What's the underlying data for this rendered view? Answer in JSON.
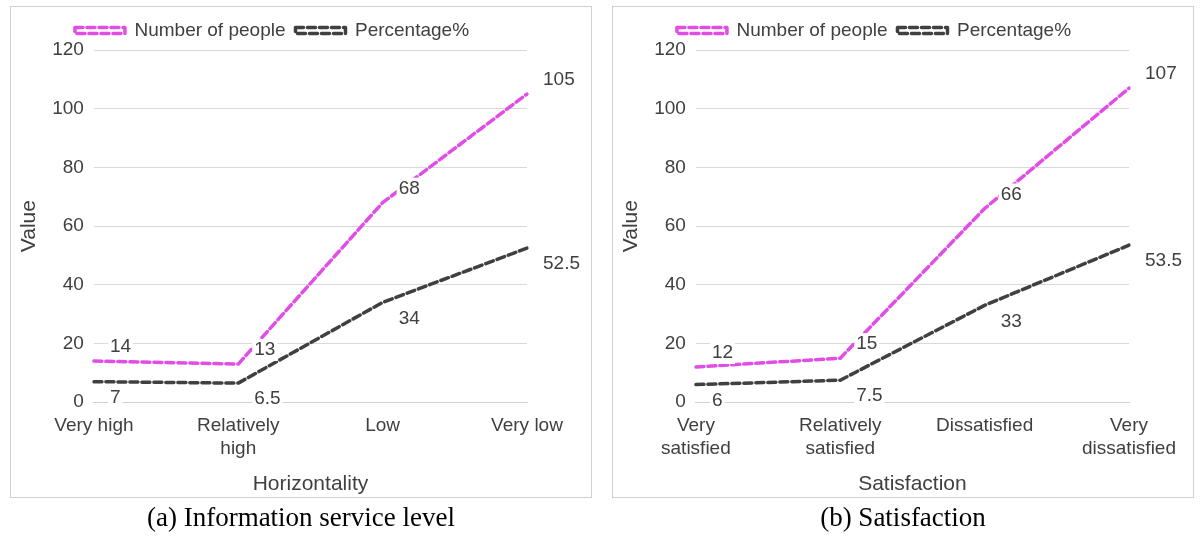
{
  "chart_data": [
    {
      "type": "line",
      "categories": [
        "Very high",
        "Relatively high",
        "Low",
        "Very low"
      ],
      "xlabel": "Horizontality",
      "ylabel": "Value",
      "ylim": [
        0,
        120
      ],
      "yticks": [
        0,
        20,
        40,
        60,
        80,
        100,
        120
      ],
      "grid": "y",
      "legend": "top",
      "line_style": "dashed",
      "marker": "none",
      "data_labels": true,
      "annotations": [
        "(a) Information service level"
      ],
      "series": [
        {
          "name": "Number of people",
          "color": "#e04ee6",
          "values": [
            14,
            13,
            68,
            105
          ]
        },
        {
          "name": "Percentage%",
          "color": "#404040",
          "values": [
            7,
            6.5,
            34,
            52.5
          ]
        }
      ]
    },
    {
      "type": "line",
      "categories": [
        "Very satisfied",
        "Relatively satisfied",
        "Dissatisfied",
        "Very dissatisfied"
      ],
      "xlabel": "Satisfaction",
      "ylabel": "Value",
      "ylim": [
        0,
        120
      ],
      "yticks": [
        0,
        20,
        40,
        60,
        80,
        100,
        120
      ],
      "grid": "y",
      "legend": "top",
      "line_style": "dashed",
      "marker": "none",
      "data_labels": true,
      "annotations": [
        "(b) Satisfaction"
      ],
      "series": [
        {
          "name": "Number of people",
          "color": "#e04ee6",
          "values": [
            12,
            15,
            66,
            107
          ]
        },
        {
          "name": "Percentage%",
          "color": "#404040",
          "values": [
            6,
            7.5,
            33,
            53.5
          ]
        }
      ]
    }
  ]
}
